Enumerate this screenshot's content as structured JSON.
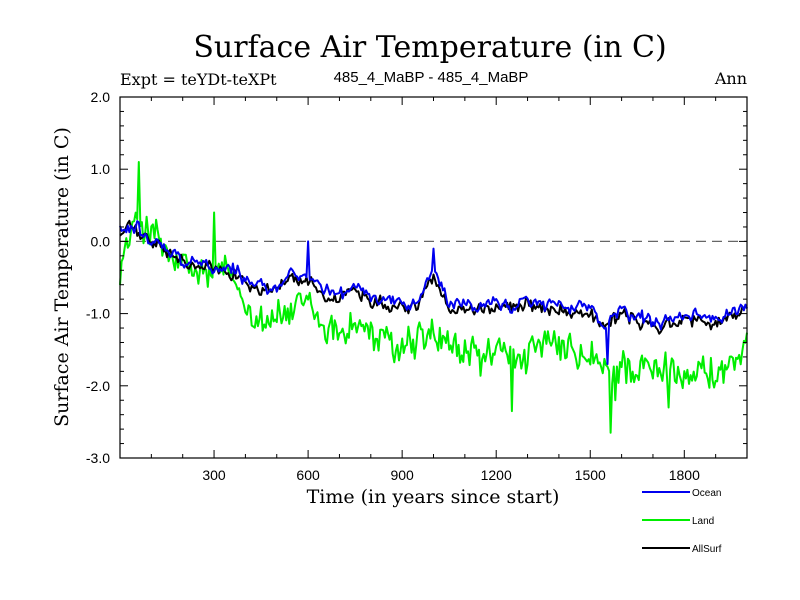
{
  "chart_data": {
    "type": "line",
    "title": "Surface Air Temperature (in C)",
    "subtitle_left": "Expt = teYDt-teXPt",
    "subtitle_center": "485_4_MaBP - 485_4_MaBP",
    "subtitle_right": "Ann",
    "xlabel": "Time (in years since start)",
    "ylabel": "Surface Air Temperature (in C)",
    "xlim": [
      0,
      2000
    ],
    "ylim": [
      -3.0,
      2.0
    ],
    "x_ticks": [
      300,
      600,
      900,
      1200,
      1500,
      1800
    ],
    "x_tick_labels": [
      "300",
      "600",
      "900",
      "1200",
      "1500",
      "1800"
    ],
    "y_ticks": [
      -3.0,
      -2.0,
      -1.0,
      0.0,
      1.0,
      2.0
    ],
    "y_tick_labels": [
      "-3.0",
      "-2.0",
      "-1.0",
      "0.0",
      "1.0",
      "2.0"
    ],
    "reference_line": 0.0,
    "x_step": 5,
    "series": [
      {
        "name": "Land",
        "color": "#00ee00",
        "anchors": [
          [
            0,
            -0.3
          ],
          [
            30,
            0.0
          ],
          [
            60,
            0.3
          ],
          [
            90,
            0.2
          ],
          [
            120,
            0.0
          ],
          [
            150,
            -0.2
          ],
          [
            200,
            -0.4
          ],
          [
            250,
            -0.45
          ],
          [
            300,
            -0.5
          ],
          [
            350,
            -0.45
          ],
          [
            400,
            -0.85
          ],
          [
            450,
            -1.0
          ],
          [
            500,
            -1.05
          ],
          [
            550,
            -1.0
          ],
          [
            600,
            -0.9
          ],
          [
            650,
            -1.2
          ],
          [
            700,
            -1.25
          ],
          [
            750,
            -1.1
          ],
          [
            800,
            -1.3
          ],
          [
            850,
            -1.45
          ],
          [
            900,
            -1.5
          ],
          [
            950,
            -1.4
          ],
          [
            1000,
            -1.3
          ],
          [
            1050,
            -1.5
          ],
          [
            1100,
            -1.55
          ],
          [
            1150,
            -1.6
          ],
          [
            1200,
            -1.55
          ],
          [
            1250,
            -1.6
          ],
          [
            1300,
            -1.55
          ],
          [
            1350,
            -1.5
          ],
          [
            1400,
            -1.5
          ],
          [
            1450,
            -1.6
          ],
          [
            1500,
            -1.65
          ],
          [
            1550,
            -1.85
          ],
          [
            1600,
            -1.7
          ],
          [
            1650,
            -1.75
          ],
          [
            1700,
            -1.85
          ],
          [
            1750,
            -1.8
          ],
          [
            1800,
            -1.75
          ],
          [
            1850,
            -1.8
          ],
          [
            1900,
            -1.85
          ],
          [
            1950,
            -1.7
          ],
          [
            2000,
            -1.6
          ]
        ],
        "noise": 0.35,
        "spikes": [
          [
            60,
            1.1
          ],
          [
            300,
            0.4
          ],
          [
            1250,
            -2.35
          ],
          [
            1565,
            -2.65
          ],
          [
            1580,
            -2.2
          ],
          [
            1750,
            -2.3
          ]
        ]
      },
      {
        "name": "AllSurf",
        "color": "#000000",
        "anchors": [
          [
            0,
            0.1
          ],
          [
            30,
            0.2
          ],
          [
            60,
            0.1
          ],
          [
            100,
            0.0
          ],
          [
            150,
            -0.15
          ],
          [
            200,
            -0.3
          ],
          [
            250,
            -0.35
          ],
          [
            300,
            -0.4
          ],
          [
            350,
            -0.4
          ],
          [
            400,
            -0.55
          ],
          [
            450,
            -0.7
          ],
          [
            500,
            -0.65
          ],
          [
            550,
            -0.5
          ],
          [
            600,
            -0.55
          ],
          [
            650,
            -0.75
          ],
          [
            700,
            -0.8
          ],
          [
            750,
            -0.65
          ],
          [
            800,
            -0.8
          ],
          [
            850,
            -0.85
          ],
          [
            900,
            -0.9
          ],
          [
            950,
            -0.9
          ],
          [
            1000,
            -0.45
          ],
          [
            1050,
            -0.95
          ],
          [
            1100,
            -0.9
          ],
          [
            1150,
            -0.95
          ],
          [
            1200,
            -0.9
          ],
          [
            1250,
            -0.95
          ],
          [
            1300,
            -0.85
          ],
          [
            1350,
            -0.9
          ],
          [
            1400,
            -0.95
          ],
          [
            1450,
            -0.95
          ],
          [
            1500,
            -1.0
          ],
          [
            1550,
            -1.2
          ],
          [
            1600,
            -1.0
          ],
          [
            1650,
            -1.1
          ],
          [
            1700,
            -1.2
          ],
          [
            1750,
            -1.15
          ],
          [
            1800,
            -1.1
          ],
          [
            1850,
            -1.1
          ],
          [
            1900,
            -1.15
          ],
          [
            1950,
            -1.05
          ],
          [
            2000,
            -0.95
          ]
        ],
        "noise": 0.12,
        "spikes": []
      },
      {
        "name": "Ocean",
        "color": "#0000ee",
        "anchors": [
          [
            0,
            0.15
          ],
          [
            30,
            0.25
          ],
          [
            60,
            0.15
          ],
          [
            100,
            0.05
          ],
          [
            150,
            -0.1
          ],
          [
            200,
            -0.25
          ],
          [
            250,
            -0.3
          ],
          [
            300,
            -0.35
          ],
          [
            350,
            -0.35
          ],
          [
            400,
            -0.5
          ],
          [
            450,
            -0.65
          ],
          [
            500,
            -0.6
          ],
          [
            550,
            -0.45
          ],
          [
            600,
            -0.5
          ],
          [
            650,
            -0.7
          ],
          [
            700,
            -0.75
          ],
          [
            750,
            -0.6
          ],
          [
            800,
            -0.75
          ],
          [
            850,
            -0.8
          ],
          [
            900,
            -0.85
          ],
          [
            950,
            -0.85
          ],
          [
            1000,
            -0.35
          ],
          [
            1050,
            -0.9
          ],
          [
            1100,
            -0.85
          ],
          [
            1150,
            -0.9
          ],
          [
            1200,
            -0.85
          ],
          [
            1250,
            -0.9
          ],
          [
            1300,
            -0.8
          ],
          [
            1350,
            -0.85
          ],
          [
            1400,
            -0.9
          ],
          [
            1450,
            -0.9
          ],
          [
            1500,
            -0.95
          ],
          [
            1550,
            -1.15
          ],
          [
            1600,
            -0.95
          ],
          [
            1650,
            -1.05
          ],
          [
            1700,
            -1.15
          ],
          [
            1750,
            -1.1
          ],
          [
            1800,
            -1.05
          ],
          [
            1850,
            -1.05
          ],
          [
            1900,
            -1.1
          ],
          [
            1950,
            -1.0
          ],
          [
            2000,
            -0.9
          ]
        ],
        "noise": 0.12,
        "spikes": [
          [
            600,
            0.0
          ],
          [
            1000,
            -0.1
          ],
          [
            1555,
            -1.7
          ]
        ]
      }
    ],
    "legend": [
      {
        "name": "Ocean",
        "color": "#0000ee"
      },
      {
        "name": "Land",
        "color": "#00ee00"
      },
      {
        "name": "AllSurf",
        "color": "#000000"
      }
    ],
    "legend_position": "bottom-right"
  }
}
